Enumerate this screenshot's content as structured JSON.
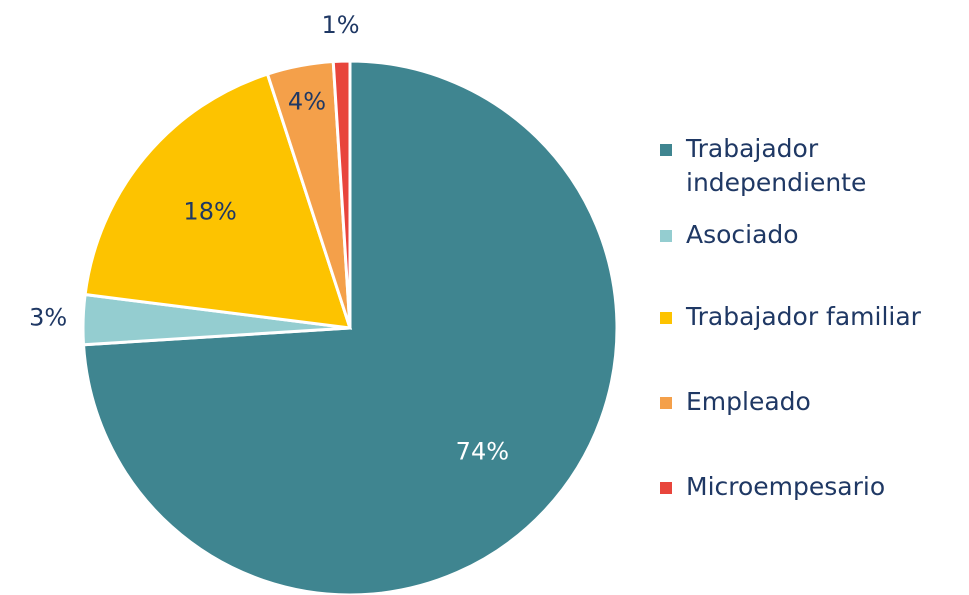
{
  "chart_data": {
    "type": "pie",
    "categories": [
      "Trabajador independiente",
      "Asociado",
      "Trabajador familiar",
      "Empleado",
      "Microempesario"
    ],
    "values": [
      74,
      3,
      18,
      4,
      1
    ],
    "value_labels": [
      "74%",
      "3%",
      "18%",
      "4%",
      "1%"
    ],
    "colors": [
      "#3f8590",
      "#94cdd0",
      "#fdc300",
      "#f4a04a",
      "#e8453c"
    ],
    "legend": "right"
  }
}
